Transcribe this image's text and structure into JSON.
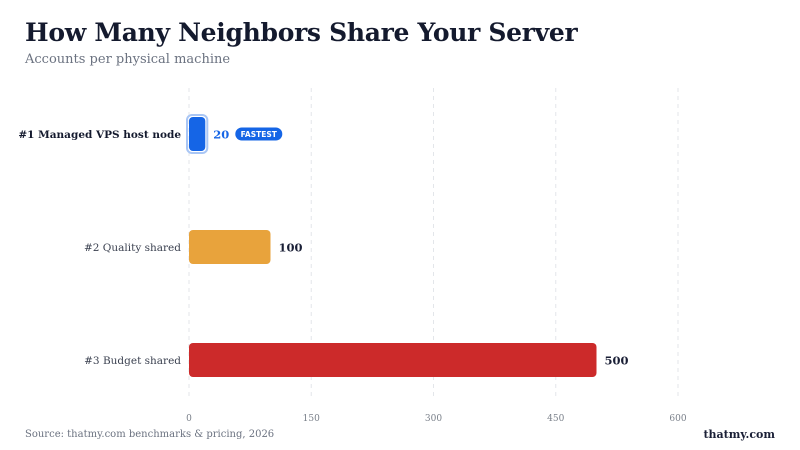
{
  "title": "How Many Neighbors Share Your Server",
  "subtitle": "Accounts per physical machine",
  "footer": {
    "source": "Source: thatmy.com benchmarks & pricing, 2026",
    "brand": "thatmy.com"
  },
  "chart_data": {
    "type": "bar",
    "orientation": "horizontal",
    "categories": [
      "#1  Managed VPS host node",
      "#2  Quality shared",
      "#3  Budget shared"
    ],
    "values": [
      20,
      100,
      500
    ],
    "value_labels": [
      "20",
      "100",
      "500"
    ],
    "colors": [
      "#1565e6",
      "#e8a33c",
      "#cc2a2a"
    ],
    "badge": {
      "index": 0,
      "text": "FASTEST",
      "color": "#1565e6"
    },
    "xlim": [
      0,
      600
    ],
    "xticks": [
      "0",
      "150",
      "300",
      "450",
      "600"
    ],
    "grid": true
  }
}
